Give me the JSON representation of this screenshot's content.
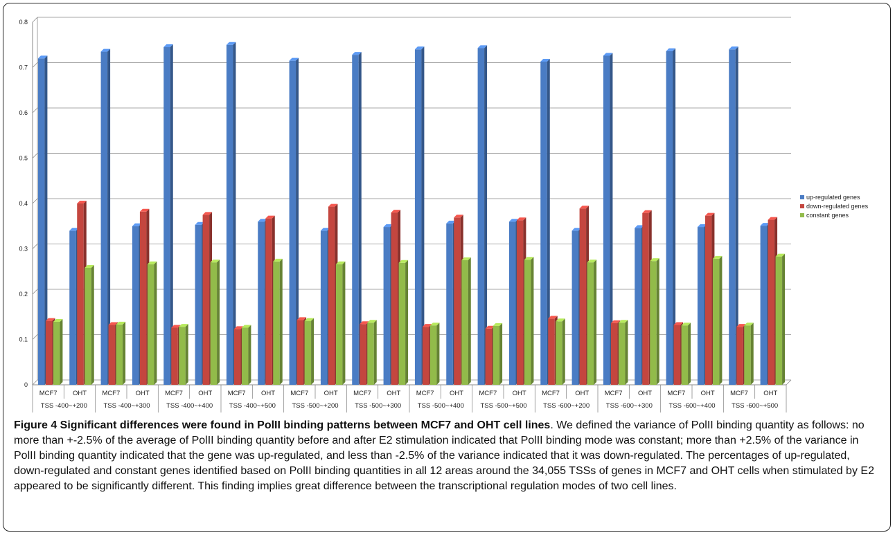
{
  "chart_data": {
    "type": "bar",
    "ylim": [
      0,
      0.8
    ],
    "y_ticks": [
      "0",
      "0.1",
      "0.2",
      "0.3",
      "0.4",
      "0.5",
      "0.6",
      "0.7",
      "0.8"
    ],
    "grid": true,
    "legend_position": "right",
    "categories": [
      "MCF7",
      "OHT",
      "MCF7",
      "OHT",
      "MCF7",
      "OHT",
      "MCF7",
      "OHT",
      "MCF7",
      "OHT",
      "MCF7",
      "OHT",
      "MCF7",
      "OHT",
      "MCF7",
      "OHT",
      "MCF7",
      "OHT",
      "MCF7",
      "OHT",
      "MCF7",
      "OHT",
      "MCF7",
      "OHT"
    ],
    "groups": [
      "TSS -400~+200",
      "TSS -400~+300",
      "TSS -400~+400",
      "TSS -400~+500",
      "TSS -500~+200",
      "TSS -500~+300",
      "TSS -500~+400",
      "TSS -500~+500",
      "TSS -600~+200",
      "TSS -600~+300",
      "TSS -600~+400",
      "TSS -600~+500"
    ],
    "series": [
      {
        "name": "up-regulated genes",
        "color": "#4a7cc4",
        "values": [
          0.72,
          0.34,
          0.735,
          0.35,
          0.745,
          0.353,
          0.75,
          0.36,
          0.715,
          0.34,
          0.728,
          0.348,
          0.74,
          0.356,
          0.743,
          0.36,
          0.713,
          0.34,
          0.726,
          0.346,
          0.736,
          0.348,
          0.74,
          0.351
        ]
      },
      {
        "name": "down-regulated genes",
        "color": "#c4463f",
        "values": [
          0.141,
          0.4,
          0.132,
          0.382,
          0.126,
          0.375,
          0.123,
          0.367,
          0.143,
          0.393,
          0.134,
          0.38,
          0.128,
          0.369,
          0.124,
          0.363,
          0.146,
          0.389,
          0.136,
          0.379,
          0.132,
          0.373,
          0.128,
          0.364
        ]
      },
      {
        "name": "constant genes",
        "color": "#92bb4a",
        "values": [
          0.139,
          0.258,
          0.133,
          0.266,
          0.128,
          0.27,
          0.126,
          0.272,
          0.141,
          0.266,
          0.137,
          0.269,
          0.131,
          0.275,
          0.13,
          0.276,
          0.14,
          0.27,
          0.137,
          0.273,
          0.131,
          0.278,
          0.131,
          0.283
        ]
      }
    ]
  },
  "caption": {
    "title": "Figure 4 Significant differences were found in PolII binding patterns between MCF7 and OHT cell lines",
    "body": ". We defined the variance of PolII binding quantity as follows: no more than +-2.5% of the average of PolII binding quantity before and after E2 stimulation indicated that PolII binding mode was constant; more than +2.5% of the variance in PolII binding quantity indicated that the gene was up-regulated, and less than -2.5% of the variance indicated that it was down-regulated. The percentages of up-regulated, down-regulated and constant genes identified based on PolII binding quantities in all 12 areas around the 34,055 TSSs of genes in MCF7 and OHT cells when stimulated by E2 appeared to be significantly different. This finding implies great difference between the transcriptional regulation modes of two cell lines."
  }
}
